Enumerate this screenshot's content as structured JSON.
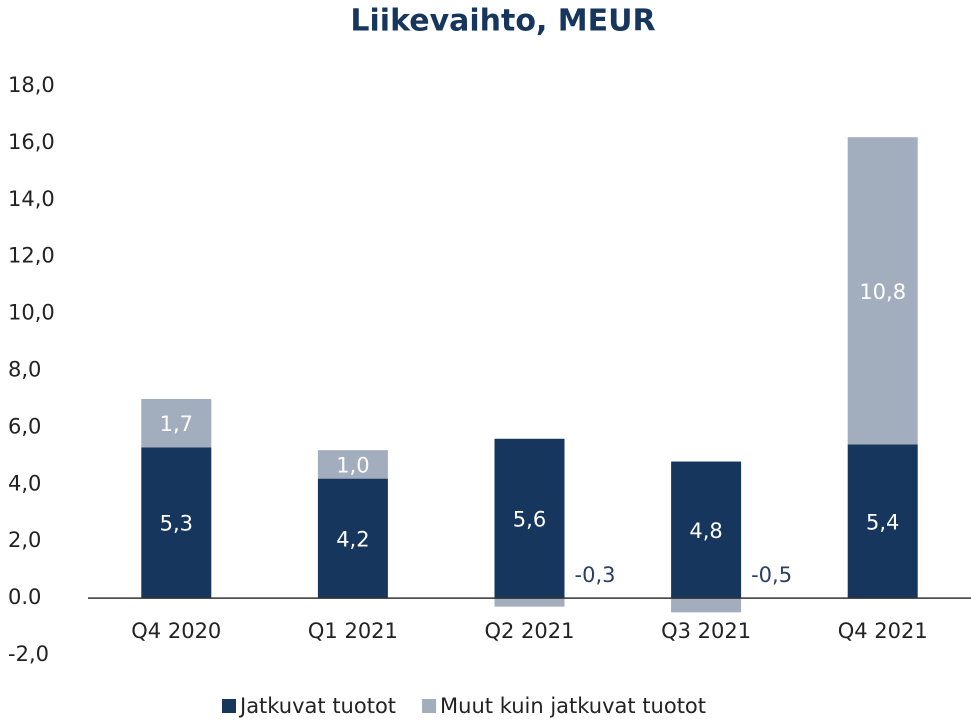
{
  "chart_data": {
    "type": "stacked_bar",
    "title": "Liikevaihto, MEUR",
    "categories": [
      "Q4 2020",
      "Q1 2021",
      "Q2 2021",
      "Q3 2021",
      "Q4 2021"
    ],
    "series": [
      {
        "name": "Jatkuvat tuotot",
        "color": "#17365d",
        "values": [
          5.3,
          4.2,
          5.6,
          4.8,
          5.4
        ],
        "value_labels": [
          "5,3",
          "4,2",
          "5,6",
          "4,8",
          "5,4"
        ]
      },
      {
        "name": "Muut kuin jatkuvat tuotot",
        "color": "#a2adbd",
        "values": [
          1.7,
          1.0,
          -0.3,
          -0.5,
          10.8
        ],
        "value_labels": [
          "1,7",
          "1,0",
          "-0,3",
          "-0,5",
          "10,8"
        ]
      }
    ],
    "ylim": [
      -2,
      18
    ],
    "yticks": [
      {
        "value": -2,
        "label": "-2,0"
      },
      {
        "value": 0,
        "label": "0.0"
      },
      {
        "value": 2,
        "label": "2,0"
      },
      {
        "value": 4,
        "label": "4,0"
      },
      {
        "value": 6,
        "label": "6,0"
      },
      {
        "value": 8,
        "label": "8,0"
      },
      {
        "value": 10,
        "label": "10,0"
      },
      {
        "value": 12,
        "label": "12,0"
      },
      {
        "value": 14,
        "label": "14,0"
      },
      {
        "value": 16,
        "label": "16,0"
      },
      {
        "value": 18,
        "label": "18,0"
      }
    ],
    "legend": "bottom"
  }
}
